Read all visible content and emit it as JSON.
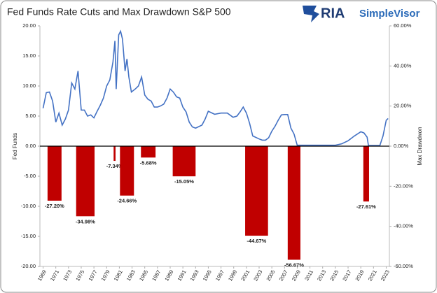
{
  "chart_data": {
    "type": "combo",
    "title": "Fed Funds Rate Cuts and Max Drawdown S&P 500",
    "logo": {
      "brand": "RIA",
      "product": "SimpleVisor"
    },
    "ylabel": "Fed Funds",
    "y2label": "Max Drawdwon",
    "xlim": [
      1968.5,
      2023.5
    ],
    "xticks": [
      1969,
      1971,
      1973,
      1975,
      1977,
      1979,
      1981,
      1983,
      1985,
      1987,
      1989,
      1991,
      1993,
      1995,
      1997,
      1999,
      2001,
      2003,
      2005,
      2007,
      2009,
      2011,
      2013,
      2015,
      2017,
      2019,
      2021,
      2023
    ],
    "ylim": [
      -20,
      20
    ],
    "yticks": [
      {
        "value": 20,
        "label": "20.00"
      },
      {
        "value": 15,
        "label": "15.00"
      },
      {
        "value": 10,
        "label": "10.00"
      },
      {
        "value": 5,
        "label": "5.00"
      },
      {
        "value": 0,
        "label": "0.00"
      },
      {
        "value": -5,
        "label": "-5.00"
      },
      {
        "value": -10,
        "label": "-10.00"
      },
      {
        "value": -15,
        "label": "-15.00"
      },
      {
        "value": -20,
        "label": "-20.00"
      }
    ],
    "y2lim": [
      -60,
      60
    ],
    "y2ticks": [
      {
        "value": 60,
        "label": "60.00%"
      },
      {
        "value": 40,
        "label": "40.00%"
      },
      {
        "value": 20,
        "label": "20.00%"
      },
      {
        "value": 0,
        "label": "0.00%"
      },
      {
        "value": -20,
        "label": "-20.00%"
      },
      {
        "value": -40,
        "label": "-40.00%"
      },
      {
        "value": -60,
        "label": "-60.00%"
      }
    ],
    "series": [
      {
        "type": "bar",
        "axis": "y2",
        "color": "#c00000",
        "x_start": [
          1969.7,
          1974.2,
          1980.1,
          1981.1,
          1984.4,
          1989.4,
          2000.8,
          2007.5,
          2019.4
        ],
        "x_end": [
          1971.9,
          1977.1,
          1980.4,
          1983.3,
          1986.7,
          1993.0,
          2004.4,
          2009.5,
          2020.3
        ],
        "values": [
          -27.2,
          -34.98,
          -7.34,
          -24.66,
          -5.68,
          -15.05,
          -44.67,
          -56.67,
          -27.61
        ],
        "value_labels": [
          "-27.20%",
          "-34.98%",
          "-7.34%",
          "-24.66%",
          "-5.68%",
          "-15.05%",
          "-44.67%",
          "-56.67%",
          "-27.61%"
        ]
      },
      {
        "type": "line",
        "color": "#4472c4",
        "x": [
          1969.0,
          1969.5,
          1970,
          1970.5,
          1971,
          1971.5,
          1972,
          1972.5,
          1973,
          1973.5,
          1974,
          1974.5,
          1975,
          1975.5,
          1976,
          1976.5,
          1977,
          1977.5,
          1978,
          1978.5,
          1979,
          1979.5,
          1980,
          1980.3,
          1980.5,
          1980.9,
          1981.2,
          1981.5,
          1981.9,
          1982.2,
          1982.5,
          1982.9,
          1983.5,
          1984,
          1984.5,
          1985,
          1985.5,
          1986,
          1986.5,
          1987,
          1987.5,
          1988,
          1988.5,
          1989,
          1989.5,
          1990,
          1990.5,
          1991,
          1991.5,
          1992,
          1992.5,
          1993,
          1994,
          1994.5,
          1995,
          1996,
          1997,
          1998,
          1998.9,
          1999.5,
          2000,
          2000.5,
          2001,
          2001.5,
          2002,
          2003,
          2003.5,
          2004,
          2004.5,
          2005,
          2005.5,
          2006,
          2006.5,
          2007,
          2007.5,
          2008,
          2008.5,
          2009,
          2010,
          2015,
          2016,
          2017,
          2018,
          2019,
          2019.5,
          2020,
          2020.2,
          2022,
          2022.5,
          2023,
          2023.3
        ],
        "values": [
          6.3,
          8.9,
          9.0,
          7.5,
          4.0,
          5.5,
          3.5,
          4.5,
          6.0,
          10.5,
          9.5,
          12.5,
          6.0,
          6.0,
          5.0,
          5.2,
          4.7,
          5.8,
          6.8,
          8.0,
          10.0,
          11.0,
          14.0,
          17.5,
          9.5,
          18.5,
          19.1,
          17.8,
          12.5,
          14.5,
          11.5,
          9.0,
          9.5,
          10.0,
          11.5,
          8.5,
          7.8,
          7.5,
          6.5,
          6.5,
          6.7,
          7.0,
          8.0,
          9.5,
          9.0,
          8.2,
          8.0,
          6.5,
          5.7,
          4.0,
          3.2,
          3.0,
          3.5,
          4.5,
          5.8,
          5.3,
          5.5,
          5.5,
          4.8,
          5.0,
          5.7,
          6.5,
          5.5,
          3.8,
          1.7,
          1.2,
          1.0,
          1.0,
          1.4,
          2.5,
          3.3,
          4.3,
          5.2,
          5.25,
          5.25,
          3.0,
          2.0,
          0.15,
          0.15,
          0.15,
          0.4,
          0.9,
          1.7,
          2.4,
          2.2,
          1.5,
          0.1,
          0.1,
          1.7,
          4.3,
          4.6
        ]
      }
    ]
  }
}
